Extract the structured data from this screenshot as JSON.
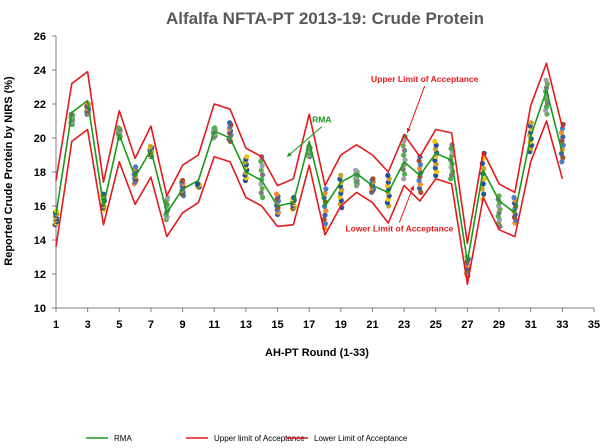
{
  "chart_data": {
    "type": "line",
    "title": "Alfalfa NFTA-PT 2013-19: Crude Protein",
    "xlabel": "AH-PT Round (1-33)",
    "ylabel": "Reported Crude Protein by NIRS (%)",
    "xlim": [
      1,
      35
    ],
    "ylim": [
      10,
      26
    ],
    "xticks": [
      1,
      3,
      5,
      7,
      9,
      11,
      13,
      15,
      17,
      19,
      21,
      23,
      25,
      27,
      29,
      31,
      33,
      35
    ],
    "yticks": [
      10,
      12,
      14,
      16,
      18,
      20,
      22,
      24,
      26
    ],
    "grid": false,
    "legend_position": "bottom",
    "x": [
      1,
      2,
      3,
      4,
      5,
      6,
      7,
      8,
      9,
      10,
      11,
      12,
      13,
      14,
      15,
      16,
      17,
      18,
      19,
      20,
      21,
      22,
      23,
      24,
      25,
      26,
      27,
      28,
      29,
      30,
      31,
      32,
      33
    ],
    "series": [
      {
        "name": "RMA",
        "color": "#1a9a1a",
        "values": [
          15.5,
          21.5,
          22.2,
          16.0,
          20.2,
          17.7,
          19.3,
          15.6,
          17.0,
          17.5,
          20.4,
          20.0,
          18.0,
          17.5,
          16.0,
          16.2,
          19.8,
          16.0,
          17.4,
          17.9,
          17.2,
          16.8,
          18.6,
          17.8,
          19.1,
          18.7,
          12.7,
          18.1,
          16.3,
          15.6,
          20.1,
          22.8,
          19.1
        ]
      },
      {
        "name": "Upper limit of Acceptance",
        "color": "#e31a1c",
        "values": [
          17.5,
          23.2,
          23.9,
          17.4,
          21.6,
          18.8,
          20.7,
          16.6,
          18.4,
          19.0,
          22.0,
          21.7,
          19.4,
          18.9,
          17.2,
          17.6,
          21.4,
          17.2,
          19.0,
          19.6,
          19.0,
          18.0,
          20.2,
          18.9,
          20.5,
          20.3,
          13.8,
          19.2,
          17.3,
          16.8,
          21.9,
          24.4,
          20.6
        ]
      },
      {
        "name": "Lower Limit of Acceptance",
        "color": "#e31a1c",
        "values": [
          13.6,
          19.8,
          20.5,
          14.9,
          18.6,
          16.1,
          17.7,
          14.2,
          15.6,
          16.2,
          18.9,
          18.6,
          16.5,
          16.0,
          14.8,
          14.9,
          18.4,
          14.3,
          16.0,
          16.8,
          16.2,
          15.0,
          17.2,
          16.3,
          17.6,
          17.3,
          11.4,
          16.5,
          14.6,
          14.2,
          18.6,
          21.0,
          17.6
        ]
      }
    ],
    "lab_scatter": {
      "min": [
        14.9,
        20.8,
        21.4,
        15.8,
        20.0,
        17.3,
        18.9,
        15.2,
        16.6,
        17.1,
        20.0,
        19.8,
        17.5,
        16.5,
        15.5,
        15.8,
        18.9,
        14.7,
        15.9,
        17.2,
        16.8,
        16.0,
        17.6,
        16.8,
        17.8,
        17.6,
        11.9,
        16.4,
        14.8,
        15.0,
        19.2,
        21.4,
        18.6
      ],
      "max": [
        15.7,
        21.4,
        22.0,
        16.7,
        20.6,
        18.3,
        19.5,
        16.5,
        17.5,
        17.3,
        20.6,
        20.9,
        18.9,
        18.9,
        16.7,
        16.5,
        19.5,
        17.0,
        17.8,
        18.1,
        17.6,
        17.8,
        20.1,
        18.9,
        19.8,
        19.6,
        13.0,
        19.1,
        16.6,
        16.5,
        20.9,
        23.4,
        20.8
      ],
      "colors": [
        "#1f4e9c",
        "#f28e2b",
        "#9aa3ae",
        "#f5c20b",
        "#4a7ec7",
        "#4caf50",
        "#2d5596",
        "#a0522d",
        "#7a7a7a",
        "#c9a227",
        "#3d5ea8",
        "#6aa84f"
      ]
    },
    "annotations": [
      {
        "text": "Upper Limit of Acceptance",
        "color": "#e31a1c",
        "at_x": 24.3,
        "at_y": 23.3,
        "arrow_to_x": 23.2,
        "arrow_to_y": 20.3
      },
      {
        "text": "RMA",
        "color": "#1a9a1a",
        "at_x": 17.8,
        "at_y": 20.9,
        "arrow_to_x": 15.6,
        "arrow_to_y": 18.9
      },
      {
        "text": "Lower Limit of Acceptance",
        "color": "#e31a1c",
        "at_x": 22.7,
        "at_y": 14.5,
        "arrow_to_x": 23.6,
        "arrow_to_y": 17.2
      }
    ]
  }
}
